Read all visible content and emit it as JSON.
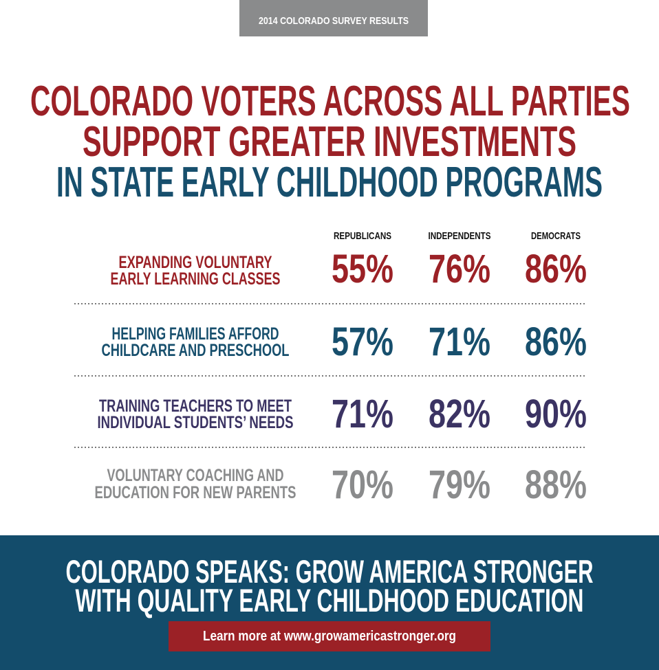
{
  "header": {
    "tag": "2014 COLORADO SURVEY RESULTS",
    "title": [
      "COLORADO VOTERS ACROSS ALL PARTIES",
      "SUPPORT GREATER INVESTMENTS",
      "IN STATE EARLY CHILDHOOD PROGRAMS"
    ]
  },
  "table": {
    "columns": [
      "REPUBLICANS",
      "INDEPENDENTS",
      "DEMOCRATS"
    ],
    "rows": [
      {
        "label": [
          "EXPANDING VOLUNTARY",
          "EARLY LEARNING CLASSES"
        ],
        "values": [
          "55%",
          "76%",
          "86%"
        ]
      },
      {
        "label": [
          "HELPING FAMILIES AFFORD",
          "CHILDCARE AND PRESCHOOL"
        ],
        "values": [
          "57%",
          "71%",
          "86%"
        ]
      },
      {
        "label": [
          "TRAINING TEACHERS TO MEET",
          "INDIVIDUAL STUDENTS’ NEEDS"
        ],
        "values": [
          "71%",
          "82%",
          "90%"
        ]
      },
      {
        "label": [
          "VOLUNTARY COACHING AND",
          "EDUCATION FOR NEW PARENTS"
        ],
        "values": [
          "70%",
          "79%",
          "88%"
        ]
      }
    ]
  },
  "footer": {
    "headline": [
      "COLORADO SPEAKS: GROW AMERICA STRONGER",
      "WITH QUALITY EARLY CHILDHOOD EDUCATION"
    ],
    "link": "Learn more at www.growamericastronger.org"
  }
}
